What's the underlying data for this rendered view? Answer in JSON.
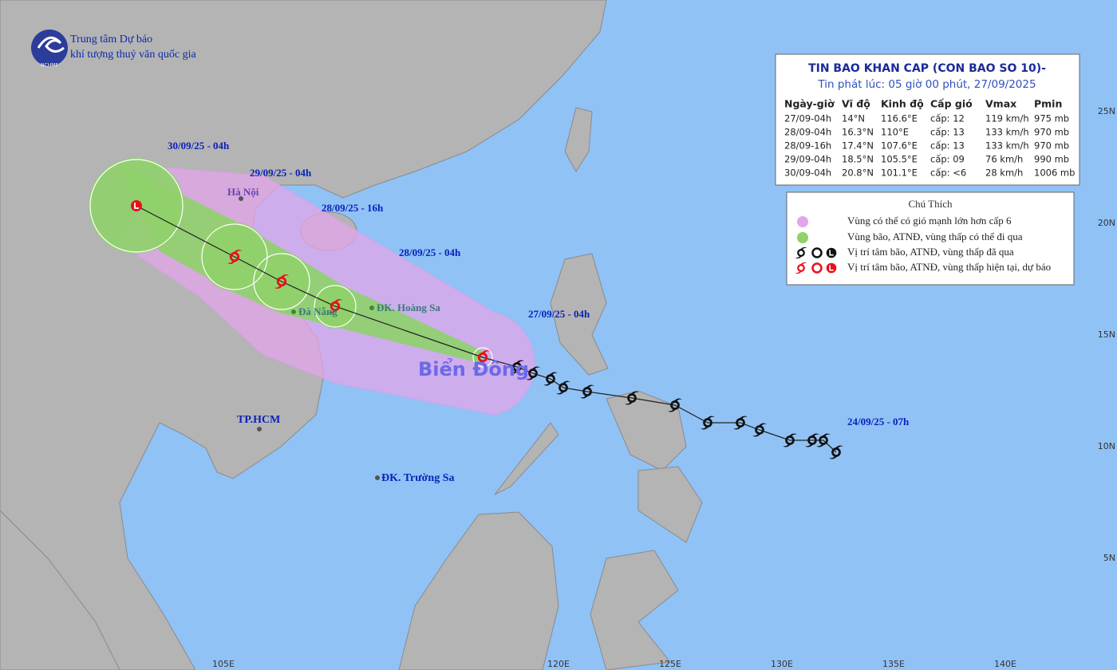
{
  "header": {
    "agency_line1": "Trung tâm Dự báo",
    "agency_line2": "khí tượng thuỷ văn quốc gia",
    "logo_text": "NCHMF"
  },
  "table": {
    "title": "TIN BAO KHAN CAP (CON BAO SO 10)-",
    "subtitle": "Tin phát lúc: 05 giờ 00 phút, 27/09/2025",
    "columns": [
      "Ngày-giờ",
      "Vĩ độ",
      "Kinh độ",
      "Cấp gió",
      "Vmax",
      "Pmin"
    ],
    "rows": [
      [
        "27/09-04h",
        "14°N",
        "116.6°E",
        "cấp: 12",
        "119 km/h",
        "975 mb"
      ],
      [
        "28/09-04h",
        "16.3°N",
        "110°E",
        "cấp: 13",
        "133 km/h",
        "970 mb"
      ],
      [
        "28/09-16h",
        "17.4°N",
        "107.6°E",
        "cấp: 13",
        "133 km/h",
        "970 mb"
      ],
      [
        "29/09-04h",
        "18.5°N",
        "105.5°E",
        "cấp: 09",
        "76 km/h",
        "990 mb"
      ],
      [
        "30/09-04h",
        "20.8°N",
        "101.1°E",
        "cấp: <6",
        "28 km/h",
        "1006 mb"
      ]
    ]
  },
  "legend": {
    "title": "Chú Thích",
    "items": [
      "Vùng có thể có gió mạnh lớn hơn cấp 6",
      "Vùng bão, ATNĐ, vùng thấp có thể đi qua",
      "Vị trí tâm bão, ATNĐ, vùng thấp đã qua",
      "Vị trí tâm bão, ATNĐ, vùng thấp hiện tại, dự báo"
    ]
  },
  "map": {
    "time_labels": [
      "30/09/25 - 04h",
      "29/09/25 - 04h",
      "28/09/25 - 16h",
      "28/09/25 - 04h",
      "27/09/25 - 04h",
      "24/09/25 - 07h"
    ],
    "places": [
      "Hà Nội",
      "Đà Nẵng",
      "ĐK. Hoàng Sa",
      "TP.HCM",
      "ĐK. Trường Sa"
    ],
    "sea_label": "Biển Đông",
    "lon_labels": [
      "105E",
      "120E",
      "125E",
      "130E",
      "135E",
      "140E"
    ],
    "lat_labels": [
      "25N",
      "20N",
      "15N",
      "10N",
      "5N"
    ]
  }
}
